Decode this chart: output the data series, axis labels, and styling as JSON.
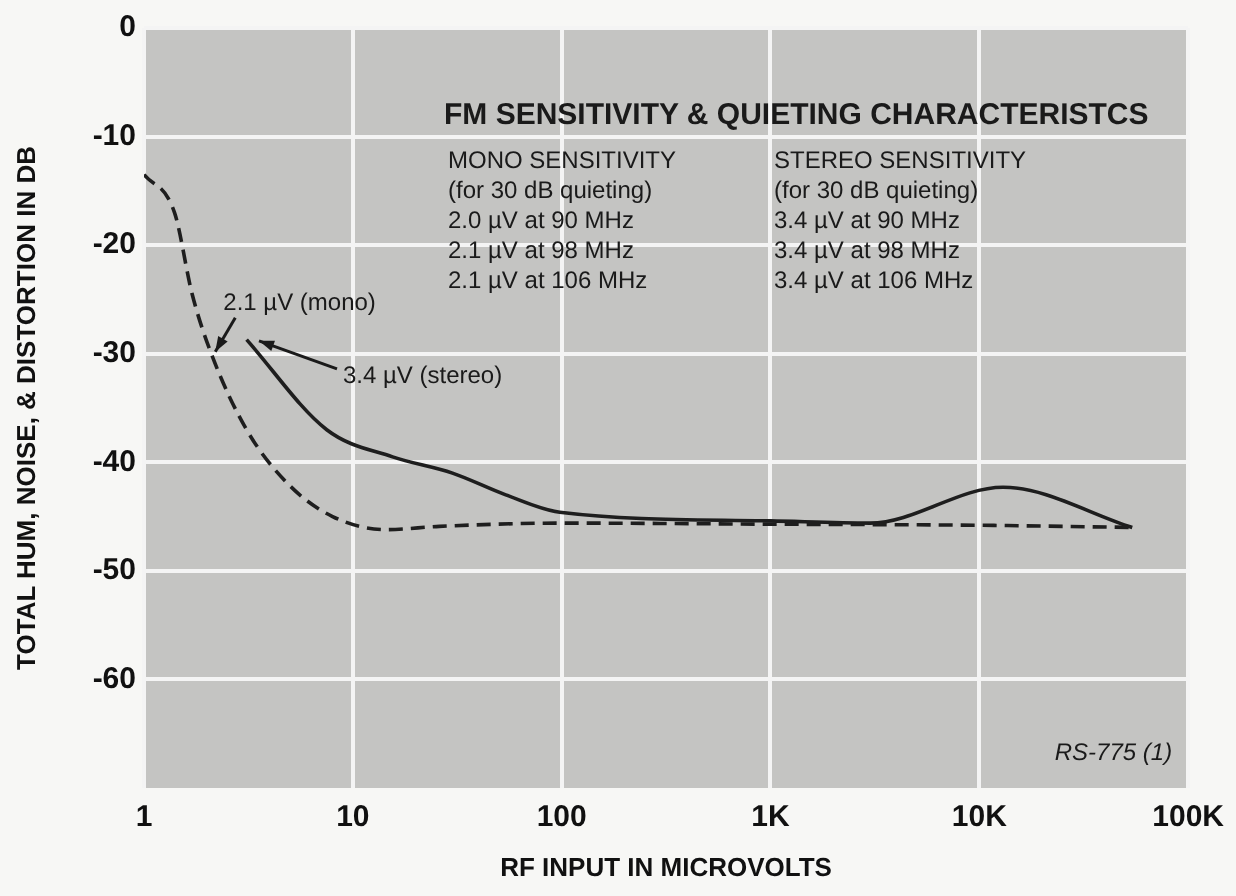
{
  "chart_data": {
    "type": "line",
    "title": "FM SENSITIVITY & QUIETING CHARACTERISTCS",
    "xlabel": "RF INPUT IN MICROVOLTS",
    "ylabel": "TOTAL HUM, NOISE, & DISTORTION IN DB",
    "log": "x",
    "xlim": [
      1,
      100000
    ],
    "xticks": [
      1,
      10,
      100,
      {
        "value": 1000,
        "label": "1K"
      },
      {
        "value": 10000,
        "label": "10K"
      },
      {
        "value": 100000,
        "label": "100K"
      }
    ],
    "ylim": [
      -70,
      0
    ],
    "yticks": [
      0,
      -10,
      -20,
      -30,
      -40,
      -50,
      -60
    ],
    "grid": true,
    "legend": false,
    "marker": "none",
    "series": [
      {
        "color": "#1e1e1e",
        "line_style": "dashed",
        "x": [
          1,
          1.4,
          1.7,
          2.1,
          3.1,
          4.9,
          8,
          14.5,
          26,
          100,
          1000,
          10000,
          54000
        ],
        "values": [
          -13.5,
          -17,
          -24.5,
          -30,
          -37,
          -42,
          -45,
          -46.2,
          -45.9,
          -45.6,
          -45.7,
          -45.8,
          -46
        ]
      },
      {
        "color": "#1e1e1e",
        "line_style": "solid",
        "x": [
          3.1,
          7.5,
          15.5,
          30,
          54,
          98,
          1000,
          3000,
          13000,
          54000
        ],
        "values": [
          -28.7,
          -37,
          -39.5,
          -41,
          -43,
          -44.6,
          -45.4,
          -45.6,
          -42.3,
          -46
        ]
      }
    ],
    "annotations": [
      {
        "text": "2.1 µV (mono)",
        "x": 2.1,
        "y": -30
      },
      {
        "text": "3.4 µV (stereo)",
        "x": 3.4,
        "y": -29
      },
      "MONO SENSITIVITY\n(for 30 dB quieting)\n2.0 µV at 90 MHz\n2.1 µV at 98 MHz\n2.1 µV at 106 MHz",
      "STEREO SENSITIVITY\n(for 30 dB quieting)\n3.4 µV at 90 MHz\n3.4 µV at 98 MHz\n3.4 µV at 106 MHz",
      "RS-775 (1)"
    ]
  }
}
